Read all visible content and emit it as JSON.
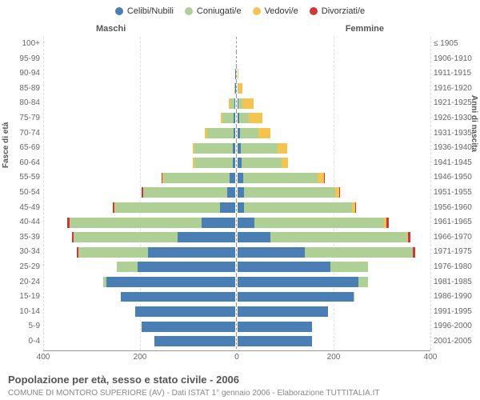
{
  "chart": {
    "type": "population-pyramid",
    "legend": [
      {
        "label": "Celibi/Nubili",
        "color": "#4a7fb5"
      },
      {
        "label": "Coniugati/e",
        "color": "#afd095"
      },
      {
        "label": "Vedovi/e",
        "color": "#f5c44f"
      },
      {
        "label": "Divorziati/e",
        "color": "#d43434"
      }
    ],
    "header_male": "Maschi",
    "header_female": "Femmine",
    "y_axis_left_title": "Fasce di età",
    "y_axis_right_title": "Anni di nascita",
    "x_max": 400,
    "x_ticks": [
      400,
      200,
      0,
      200,
      400
    ],
    "background_color": "#ffffff",
    "grid_color": "#dddddd",
    "axis_color": "#999999",
    "rows": [
      {
        "age": "100+",
        "birth": "≤ 1905",
        "m": [
          0,
          0,
          0,
          0
        ],
        "f": [
          0,
          0,
          0,
          0
        ]
      },
      {
        "age": "95-99",
        "birth": "1906-1910",
        "m": [
          0,
          0,
          0,
          0
        ],
        "f": [
          0,
          0,
          5,
          0
        ]
      },
      {
        "age": "90-94",
        "birth": "1911-1915",
        "m": [
          5,
          0,
          10,
          0
        ],
        "f": [
          8,
          0,
          25,
          0
        ]
      },
      {
        "age": "85-89",
        "birth": "1916-1920",
        "m": [
          5,
          15,
          8,
          0
        ],
        "f": [
          5,
          5,
          55,
          0
        ]
      },
      {
        "age": "80-84",
        "birth": "1921-1925",
        "m": [
          8,
          50,
          15,
          0
        ],
        "f": [
          8,
          25,
          85,
          0
        ]
      },
      {
        "age": "75-79",
        "birth": "1926-1930",
        "m": [
          10,
          90,
          12,
          0
        ],
        "f": [
          10,
          55,
          80,
          0
        ]
      },
      {
        "age": "70-74",
        "birth": "1931-1935",
        "m": [
          10,
          140,
          10,
          0
        ],
        "f": [
          12,
          95,
          60,
          0
        ]
      },
      {
        "age": "65-69",
        "birth": "1936-1940",
        "m": [
          10,
          170,
          8,
          2
        ],
        "f": [
          14,
          150,
          40,
          0
        ]
      },
      {
        "age": "60-64",
        "birth": "1941-1945",
        "m": [
          12,
          170,
          5,
          3
        ],
        "f": [
          15,
          165,
          25,
          0
        ]
      },
      {
        "age": "55-59",
        "birth": "1946-1950",
        "m": [
          18,
          225,
          3,
          3
        ],
        "f": [
          18,
          230,
          20,
          2
        ]
      },
      {
        "age": "50-54",
        "birth": "1951-1955",
        "m": [
          25,
          250,
          2,
          3
        ],
        "f": [
          18,
          260,
          12,
          3
        ]
      },
      {
        "age": "45-49",
        "birth": "1956-1960",
        "m": [
          40,
          275,
          1,
          4
        ],
        "f": [
          18,
          285,
          8,
          4
        ]
      },
      {
        "age": "40-44",
        "birth": "1961-1965",
        "m": [
          75,
          295,
          0,
          5
        ],
        "f": [
          40,
          305,
          5,
          5
        ]
      },
      {
        "age": "35-39",
        "birth": "1966-1970",
        "m": [
          130,
          235,
          0,
          5
        ],
        "f": [
          72,
          300,
          2,
          6
        ]
      },
      {
        "age": "30-34",
        "birth": "1971-1975",
        "m": [
          200,
          160,
          0,
          4
        ],
        "f": [
          145,
          235,
          0,
          5
        ]
      },
      {
        "age": "25-29",
        "birth": "1976-1980",
        "m": [
          260,
          55,
          0,
          0
        ],
        "f": [
          235,
          95,
          0,
          0
        ]
      },
      {
        "age": "20-24",
        "birth": "1981-1985",
        "m": [
          325,
          8,
          0,
          0
        ],
        "f": [
          305,
          25,
          0,
          0
        ]
      },
      {
        "age": "15-19",
        "birth": "1986-1990",
        "m": [
          310,
          0,
          0,
          0
        ],
        "f": [
          310,
          2,
          0,
          0
        ]
      },
      {
        "age": "10-14",
        "birth": "1991-1995",
        "m": [
          290,
          0,
          0,
          0
        ],
        "f": [
          275,
          0,
          0,
          0
        ]
      },
      {
        "age": "5-9",
        "birth": "1996-2000",
        "m": [
          280,
          0,
          0,
          0
        ],
        "f": [
          250,
          0,
          0,
          0
        ]
      },
      {
        "age": "0-4",
        "birth": "2001-2005",
        "m": [
          260,
          0,
          0,
          0
        ],
        "f": [
          250,
          0,
          0,
          0
        ]
      }
    ],
    "caption": "Popolazione per età, sesso e stato civile - 2006",
    "subcaption": "COMUNE DI MONTORO SUPERIORE (AV) - Dati ISTAT 1° gennaio 2006 - Elaborazione TUTTITALIA.IT"
  }
}
